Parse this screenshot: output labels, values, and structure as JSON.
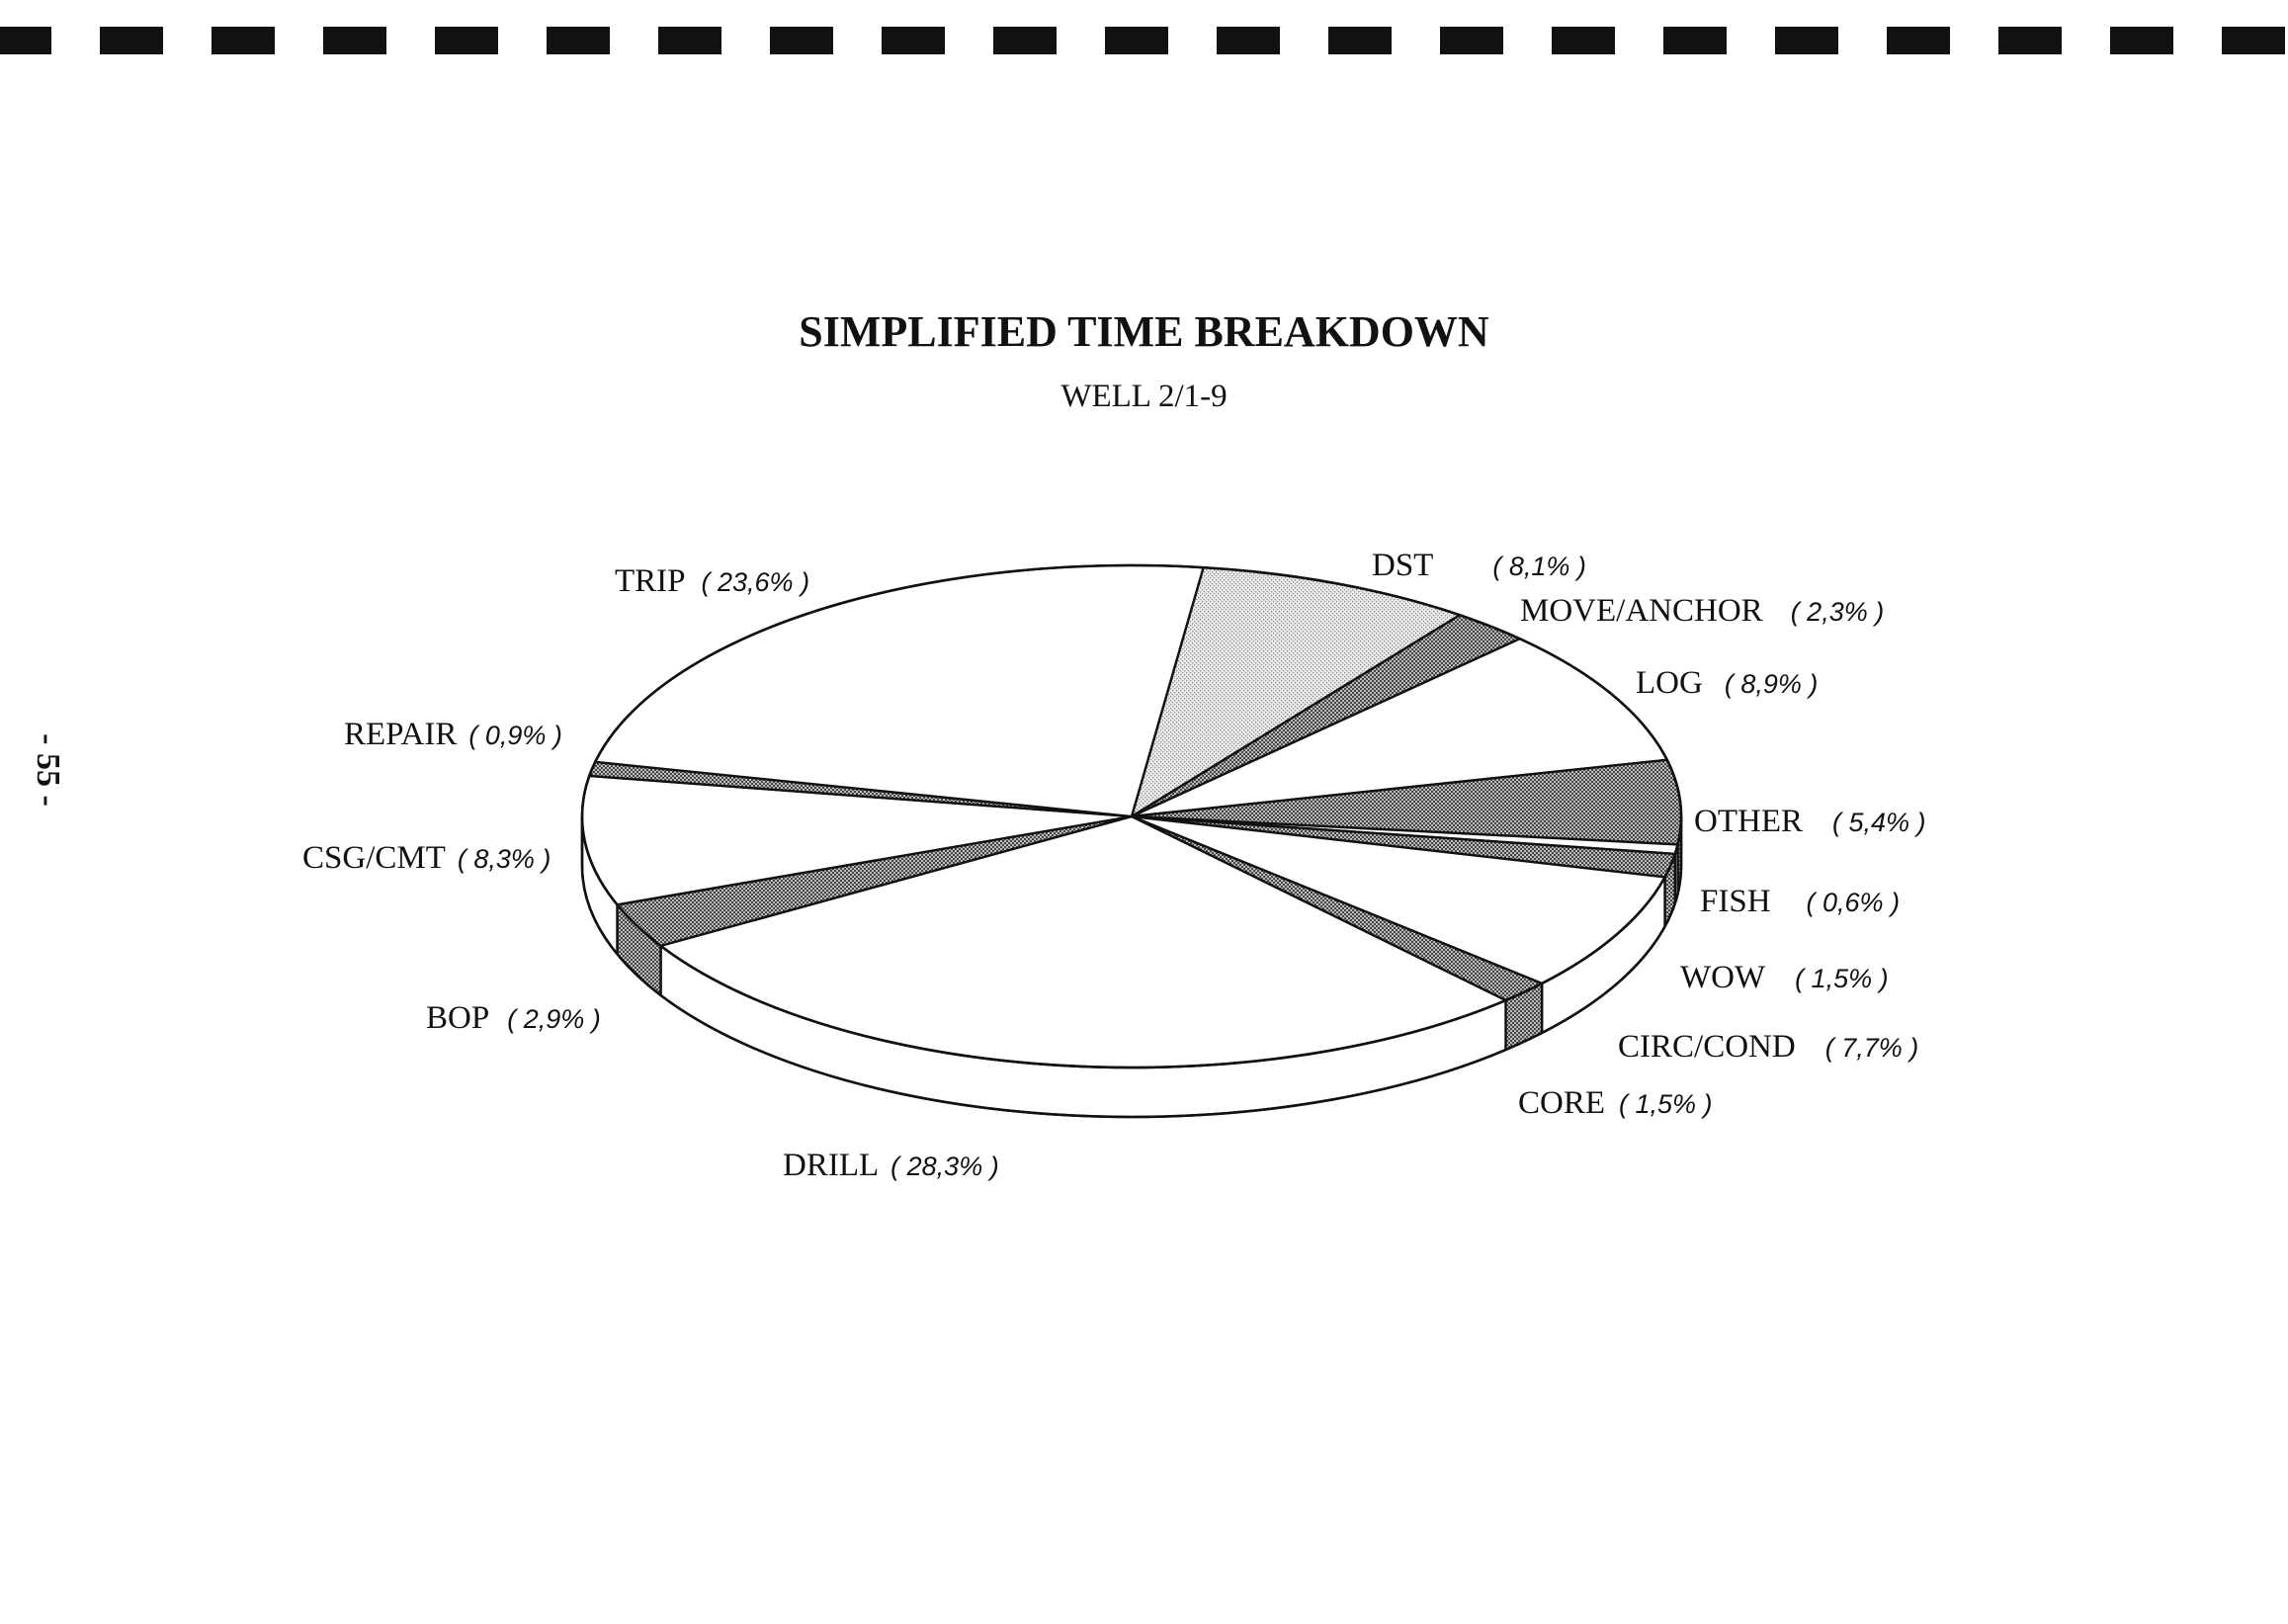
{
  "page": {
    "page_number": "- 55 -"
  },
  "chart_data": {
    "type": "pie",
    "title": "SIMPLIFIED TIME BREAKDOWN",
    "subtitle": "WELL 2/1-9",
    "style": "3d",
    "slices": [
      {
        "label": "DST",
        "value": 8.1,
        "value_label": "( 8,1% )",
        "fill": "dots-light"
      },
      {
        "label": "MOVE/ANCHOR",
        "value": 2.3,
        "value_label": "( 2,3% )",
        "fill": "dots-dark"
      },
      {
        "label": "LOG",
        "value": 8.9,
        "value_label": "( 8,9% )",
        "fill": "white"
      },
      {
        "label": "OTHER",
        "value": 5.4,
        "value_label": "( 5,4% )",
        "fill": "dots-dark"
      },
      {
        "label": "FISH",
        "value": 0.6,
        "value_label": "( 0,6% )",
        "fill": "white"
      },
      {
        "label": "WOW",
        "value": 1.5,
        "value_label": "( 1,5% )",
        "fill": "dots-dark"
      },
      {
        "label": "CIRC/COND",
        "value": 7.7,
        "value_label": "( 7,7% )",
        "fill": "white"
      },
      {
        "label": "CORE",
        "value": 1.5,
        "value_label": "( 1,5% )",
        "fill": "dots-dark"
      },
      {
        "label": "DRILL",
        "value": 28.3,
        "value_label": "( 28,3% )",
        "fill": "white"
      },
      {
        "label": "BOP",
        "value": 2.9,
        "value_label": "( 2,9% )",
        "fill": "dots-dark"
      },
      {
        "label": "CSG/CMT",
        "value": 8.3,
        "value_label": "( 8,3% )",
        "fill": "white"
      },
      {
        "label": "REPAIR",
        "value": 0.9,
        "value_label": "( 0,9% )",
        "fill": "dots-dark"
      },
      {
        "label": "TRIP",
        "value": 23.6,
        "value_label": "( 23,6% )",
        "fill": "white"
      }
    ],
    "colors": {
      "outline": "#111111",
      "white": "#ffffff",
      "dots-light": "#d9d9d9",
      "dots-dark": "#9a9a9a"
    }
  }
}
